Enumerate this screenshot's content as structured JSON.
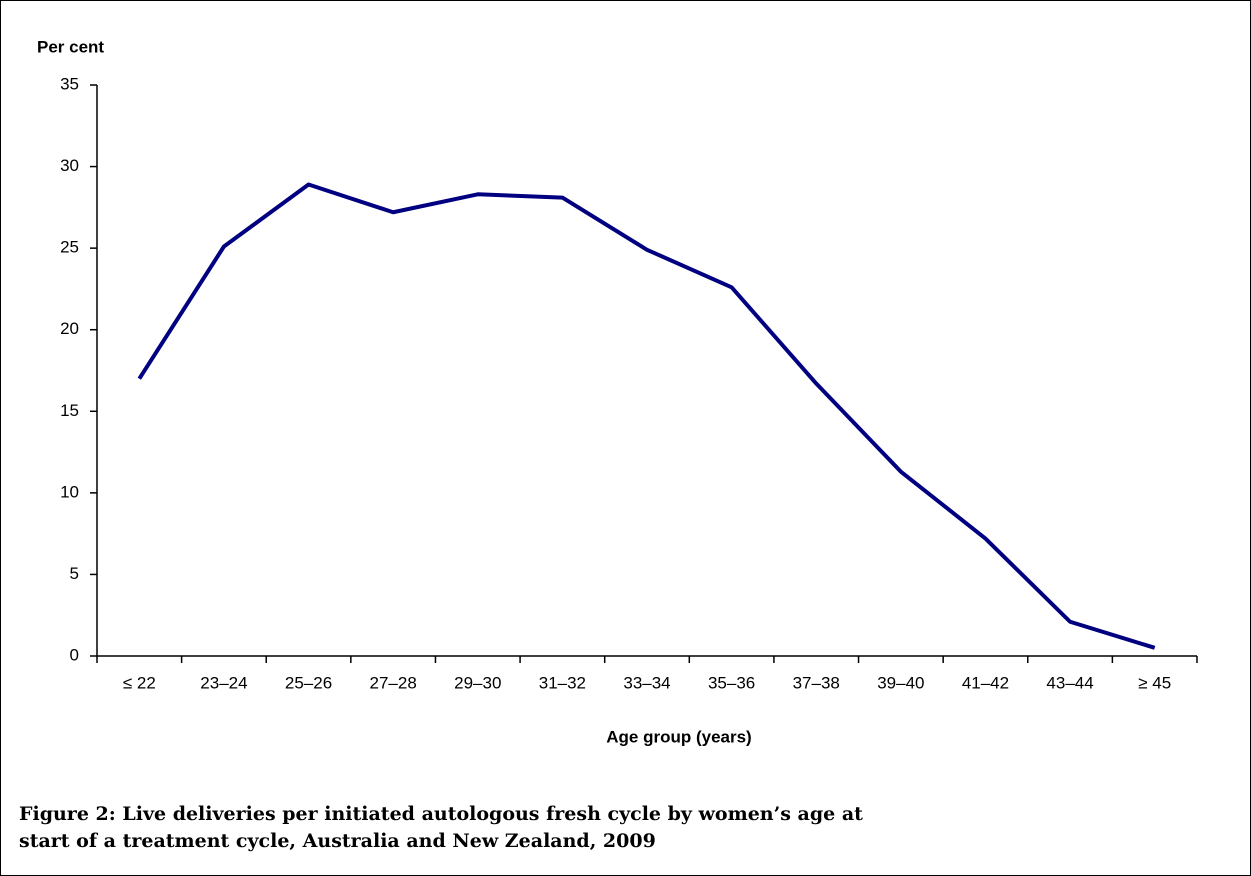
{
  "chart_data": {
    "type": "line",
    "y_label": "Per cent",
    "x_label": "Age group (years)",
    "caption": "Figure 2: Live deliveries per initiated autologous fresh cycle by women’s age at start of a treatment cycle, Australia and New Zealand, 2009",
    "categories": [
      "≤ 22",
      "23–24",
      "25–26",
      "27–28",
      "29–30",
      "31–32",
      "33–34",
      "35–36",
      "37–38",
      "39–40",
      "41–42",
      "43–44",
      "≥ 45"
    ],
    "series": [
      {
        "color": "#000080",
        "values": [
          17.0,
          25.1,
          28.9,
          27.2,
          28.3,
          28.1,
          24.9,
          22.6,
          16.7,
          11.3,
          7.2,
          2.1,
          0.5
        ]
      }
    ],
    "ylim": [
      0,
      35
    ],
    "yticks": [
      0,
      5,
      10,
      15,
      20,
      25,
      30,
      35
    ],
    "grid": false
  }
}
